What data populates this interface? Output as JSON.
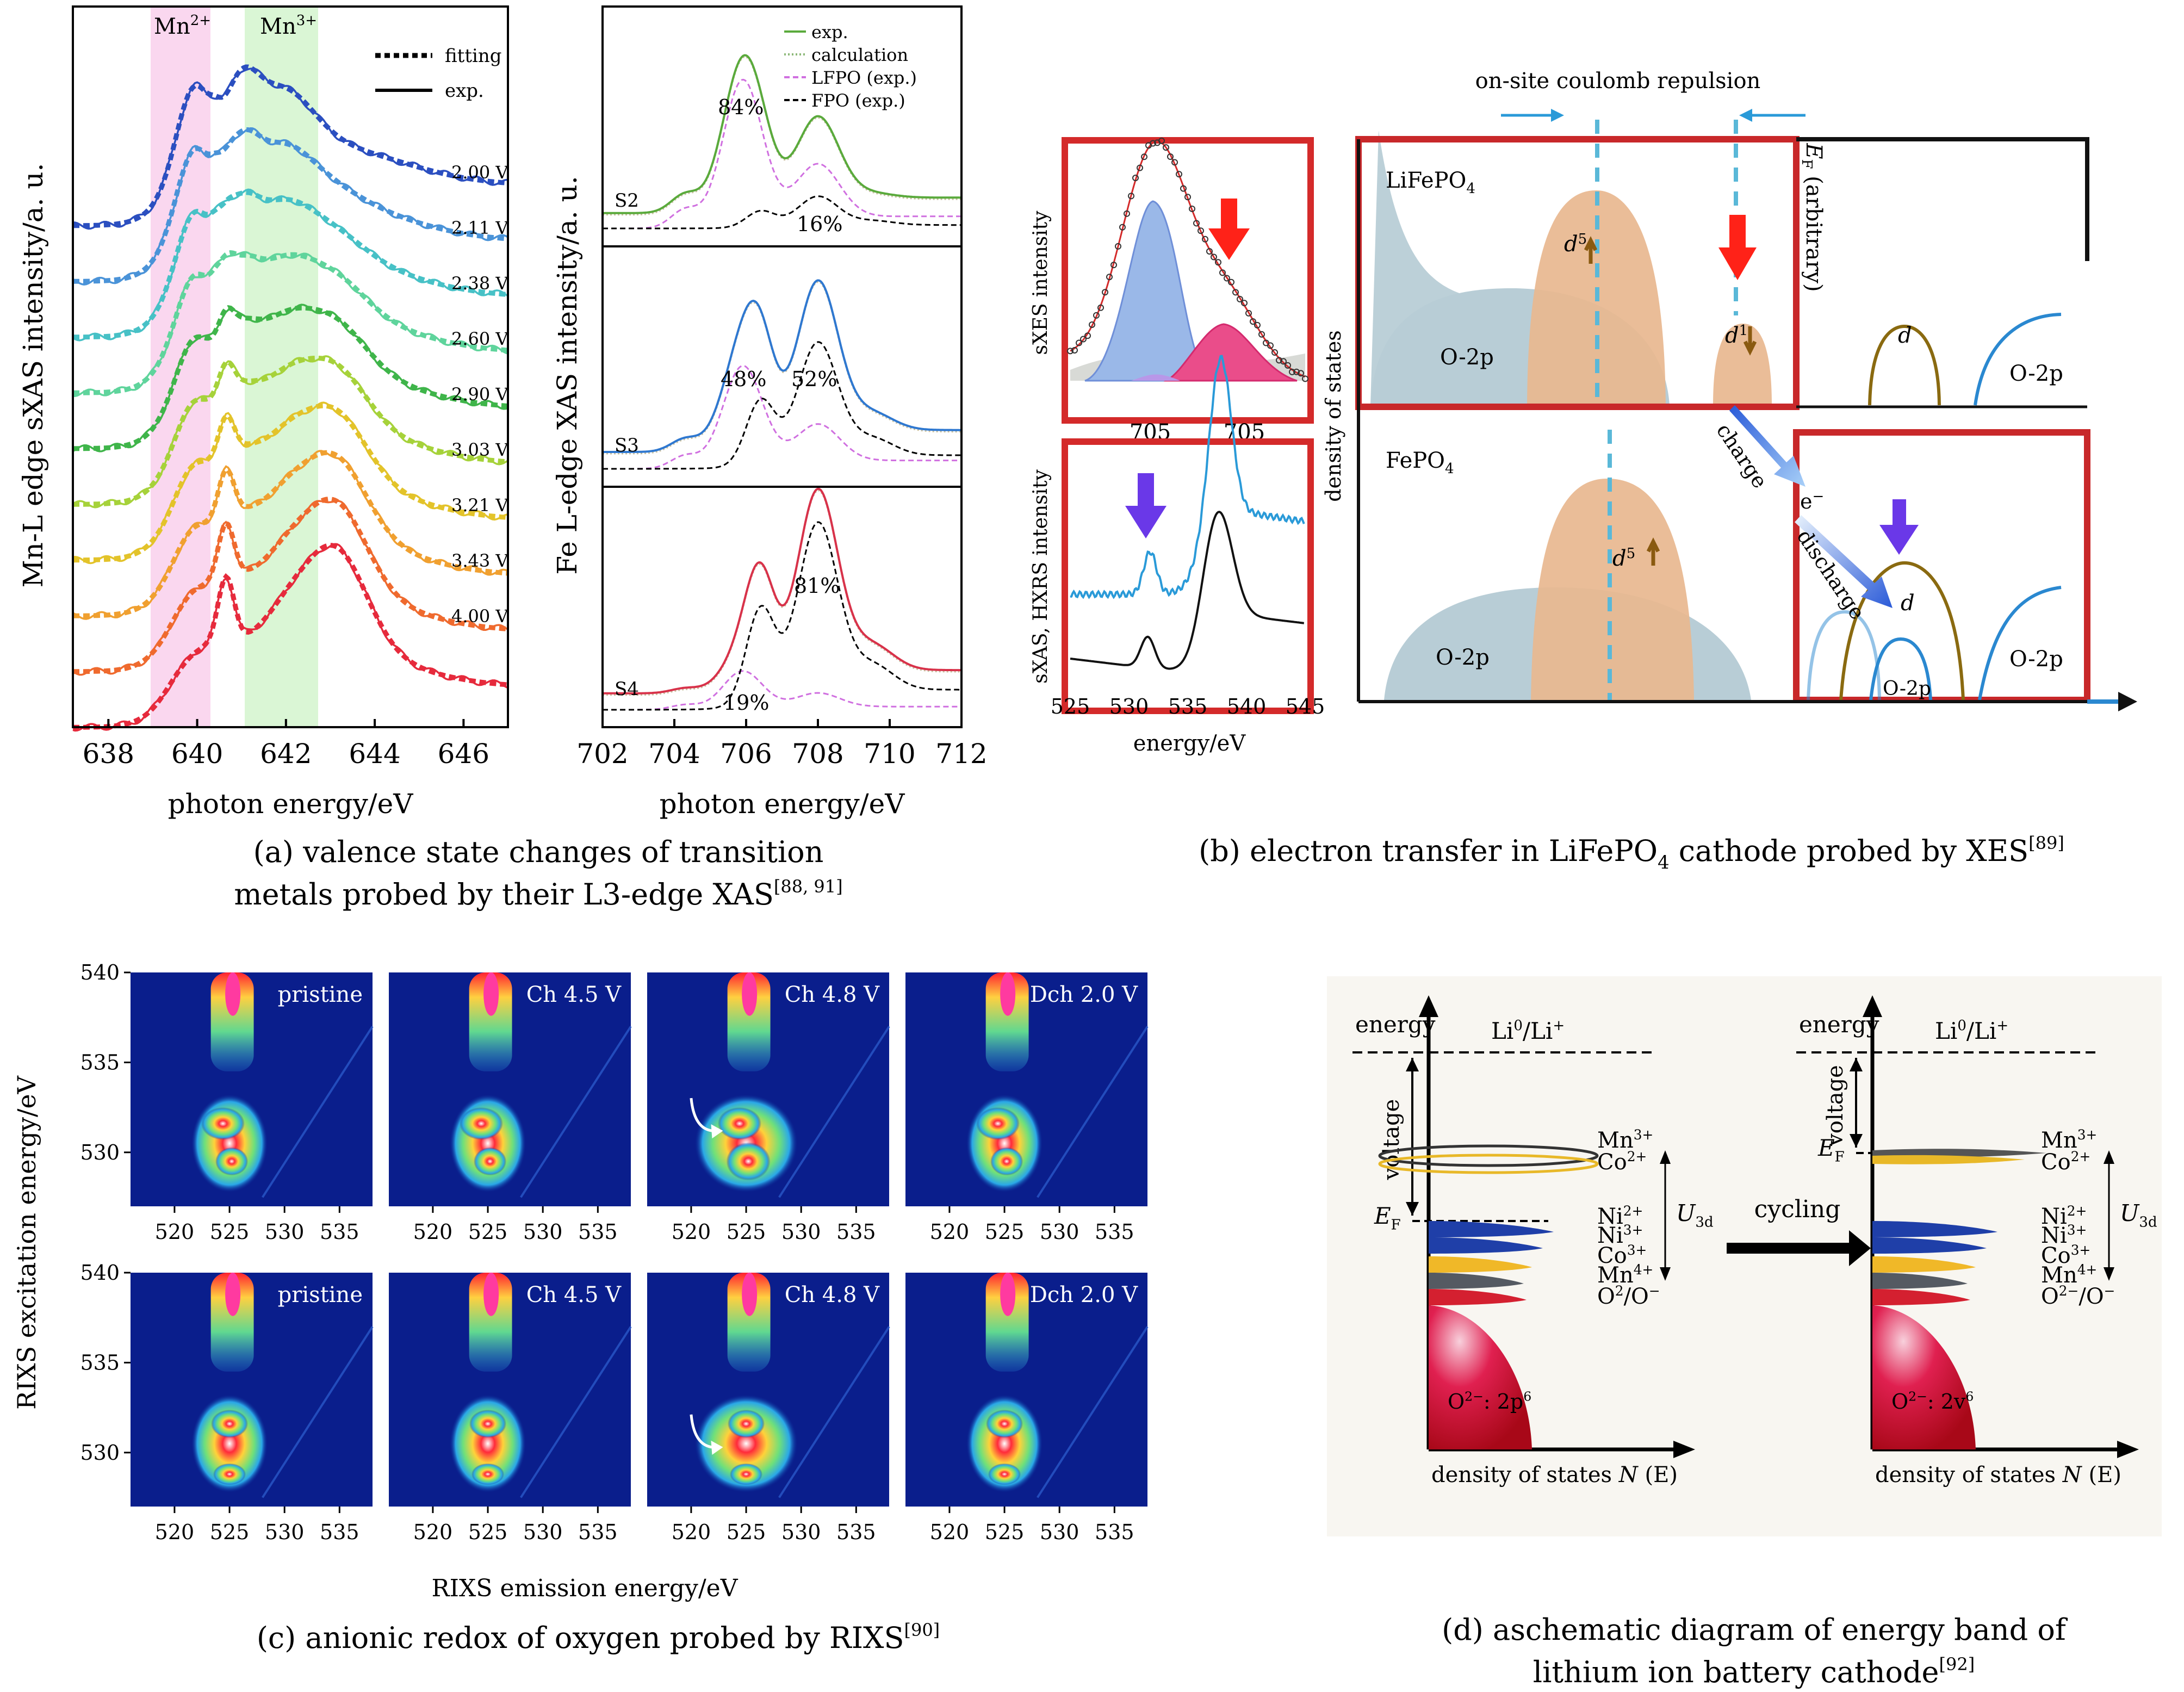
{
  "panel_a": {
    "caption": [
      "(a) valence state changes of transition",
      "metals probed by their L3-edge XAS"
    ],
    "caption_ref": "[88, 91]",
    "mn": {
      "ylabel": "Mn-L edge sXAS intensity/a. u.",
      "xlabel": "photon energy/eV",
      "xticks": [
        "638",
        "640",
        "642",
        "644",
        "646"
      ],
      "band_labels": [
        "Mn",
        "Mn"
      ],
      "band_sups": [
        "2+",
        "3+"
      ],
      "legend": [
        "fitting",
        "exp."
      ],
      "voltages": [
        "2.00 V",
        "2.11 V",
        "2.38 V",
        "2.60 V",
        "2.90 V",
        "3.03 V",
        "3.21 V",
        "3.43 V",
        "4.00 V"
      ],
      "colors": [
        "#2b4fc0",
        "#4a93d8",
        "#47c1c6",
        "#5fd49c",
        "#3fb54a",
        "#a6d23a",
        "#e3c32a",
        "#f0a030",
        "#ef6a2e",
        "#e62a3c"
      ]
    },
    "fe": {
      "ylabel": "Fe L-edge XAS intensity/a. u.",
      "xlabel": "photon energy/eV",
      "xticks": [
        "702",
        "704",
        "706",
        "708",
        "710",
        "712"
      ],
      "legend": [
        "exp.",
        "calculation",
        "LFPO (exp.)",
        "FPO (exp.)"
      ],
      "subpanels": [
        {
          "label": "S2",
          "pct_a": "84%",
          "pct_b": "16%",
          "color": "#5aaa3c"
        },
        {
          "label": "S3",
          "pct_a": "48%",
          "pct_b": "52%",
          "color": "#2f78d0"
        },
        {
          "label": "S4",
          "pct_a": "19%",
          "pct_b": "81%",
          "color": "#d8324a"
        }
      ]
    }
  },
  "panel_b": {
    "caption": "(b) electron transfer in LiFePO",
    "caption_sub": "4",
    "caption_tail": " cathode probed by XES",
    "caption_ref": "[89]",
    "sxes_ylabel": "sXES intensity",
    "sxes_xticks": [
      "705",
      "705"
    ],
    "sxas_ylabel": "sXAS, HXRS intensity",
    "sxas_xticks": [
      "525",
      "530",
      "535",
      "540",
      "545"
    ],
    "sxas_xlabel": "energy/eV",
    "dos_ylabel": "density of states",
    "coulomb": "on-site coulomb repulsion",
    "lifepo4": "LiFePO",
    "fepo4": "FePO",
    "sub4": "4",
    "o2p": "O-2p",
    "ef_label": "E",
    "ef_sub": "F",
    "ef_tail": " (arbitrary)",
    "d": "d",
    "d5_sup": "5",
    "d1_sup": "1",
    "charge": "charge",
    "discharge": "discharge",
    "electron": "e",
    "electron_sup": "−"
  },
  "panel_c": {
    "caption": "(c) anionic redox of oxygen probed by RIXS",
    "caption_ref": "[90]",
    "ylabel": "RIXS excitation energy/eV",
    "xlabel": "RIXS emission energy/eV",
    "yticks": [
      "540",
      "535",
      "530"
    ],
    "xticks": [
      "520",
      "525",
      "530",
      "535"
    ],
    "labels": [
      "pristine",
      "Ch 4.5 V",
      "Ch 4.8 V",
      "Dch 2.0 V"
    ]
  },
  "panel_d": {
    "caption": [
      "(d) aschematic diagram of energy band of",
      "lithium ion battery cathode"
    ],
    "caption_ref": "[92]",
    "energy": "energy",
    "li": "Li",
    "li_sup": "0",
    "li_tail": "/Li",
    "li_tail_sup": "+",
    "voltage": "voltage",
    "ef": "E",
    "ef_sub": "F",
    "u3d": "U",
    "u3d_sub": "3d",
    "cycling": "cycling",
    "xlabel": "density of states ",
    "xlabel_n": "N",
    "xlabel_e": " (E)",
    "species": [
      {
        "base": "Mn",
        "sup": "3+"
      },
      {
        "base": "Co",
        "sup": "2+"
      },
      {
        "base": "Ni",
        "sup": "2+"
      },
      {
        "base": "Ni",
        "sup": "3+"
      },
      {
        "base": "Co",
        "sup": "3+"
      },
      {
        "base": "Mn",
        "sup": "4+"
      }
    ],
    "o_left": "O",
    "o_left_sup": "2",
    "o_left_tail": "/O",
    "o_right": "O",
    "o_right_sup": "2−",
    "o_right_tail": "/O",
    "o_minus": "−",
    "band_left": "O",
    "band_left_sup": "2−",
    "band_left_tail": ": 2p",
    "band_left_end": "6",
    "band_right": "O",
    "band_right_sup": "2−",
    "band_right_tail": ": 2v",
    "band_right_end": "6"
  }
}
